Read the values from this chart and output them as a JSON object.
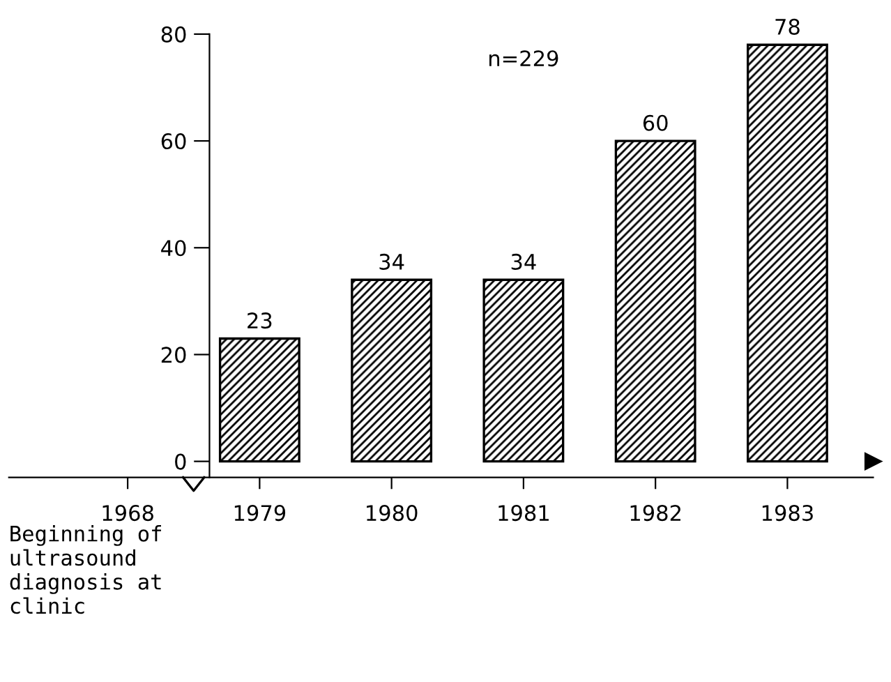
{
  "chart_data": {
    "type": "bar",
    "categories": [
      "1968",
      "1979",
      "1980",
      "1981",
      "1982",
      "1983"
    ],
    "values": [
      null,
      23,
      34,
      34,
      60,
      78
    ],
    "color": "#000000",
    "ylim": [
      -3,
      80
    ],
    "yticks": [
      0,
      20,
      40,
      60,
      80
    ],
    "data_labels": true,
    "grid": false,
    "legend": false,
    "annotations": [
      "n=229",
      "Beginning of\nultrasound\ndiagnosis at\nclinic"
    ]
  }
}
